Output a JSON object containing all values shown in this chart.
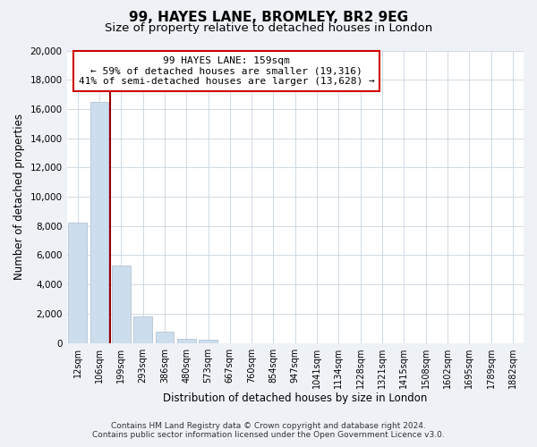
{
  "title": "99, HAYES LANE, BROMLEY, BR2 9EG",
  "subtitle": "Size of property relative to detached houses in London",
  "xlabel": "Distribution of detached houses by size in London",
  "ylabel": "Number of detached properties",
  "bar_values": [
    8200,
    16500,
    5300,
    1800,
    750,
    280,
    200,
    0,
    0,
    0,
    0,
    0,
    0,
    0,
    0,
    0,
    0,
    0,
    0,
    0,
    0
  ],
  "bar_labels": [
    "12sqm",
    "106sqm",
    "199sqm",
    "293sqm",
    "386sqm",
    "480sqm",
    "573sqm",
    "667sqm",
    "760sqm",
    "854sqm",
    "947sqm",
    "1041sqm",
    "1134sqm",
    "1228sqm",
    "1321sqm",
    "1415sqm",
    "1508sqm",
    "1602sqm",
    "1695sqm",
    "1789sqm",
    "1882sqm"
  ],
  "bar_color": "#ccdded",
  "bar_edge_color": "#aabbcc",
  "ylim": [
    0,
    20000
  ],
  "yticks": [
    0,
    2000,
    4000,
    6000,
    8000,
    10000,
    12000,
    14000,
    16000,
    18000,
    20000
  ],
  "vline_bar_index": 1,
  "vline_color": "#990000",
  "annotation_title": "99 HAYES LANE: 159sqm",
  "annotation_line1": "← 59% of detached houses are smaller (19,316)",
  "annotation_line2": "41% of semi-detached houses are larger (13,628) →",
  "annotation_box_color": "#ffffff",
  "annotation_box_edge": "#cc0000",
  "footer_line1": "Contains HM Land Registry data © Crown copyright and database right 2024.",
  "footer_line2": "Contains public sector information licensed under the Open Government Licence v3.0.",
  "background_color": "#eef2f7",
  "plot_bg_color": "#ffffff",
  "title_fontsize": 11,
  "subtitle_fontsize": 9.5,
  "ylabel_fontsize": 8.5,
  "xlabel_fontsize": 8.5,
  "tick_fontsize": 7.5,
  "annotation_fontsize": 8,
  "footer_fontsize": 6.5
}
